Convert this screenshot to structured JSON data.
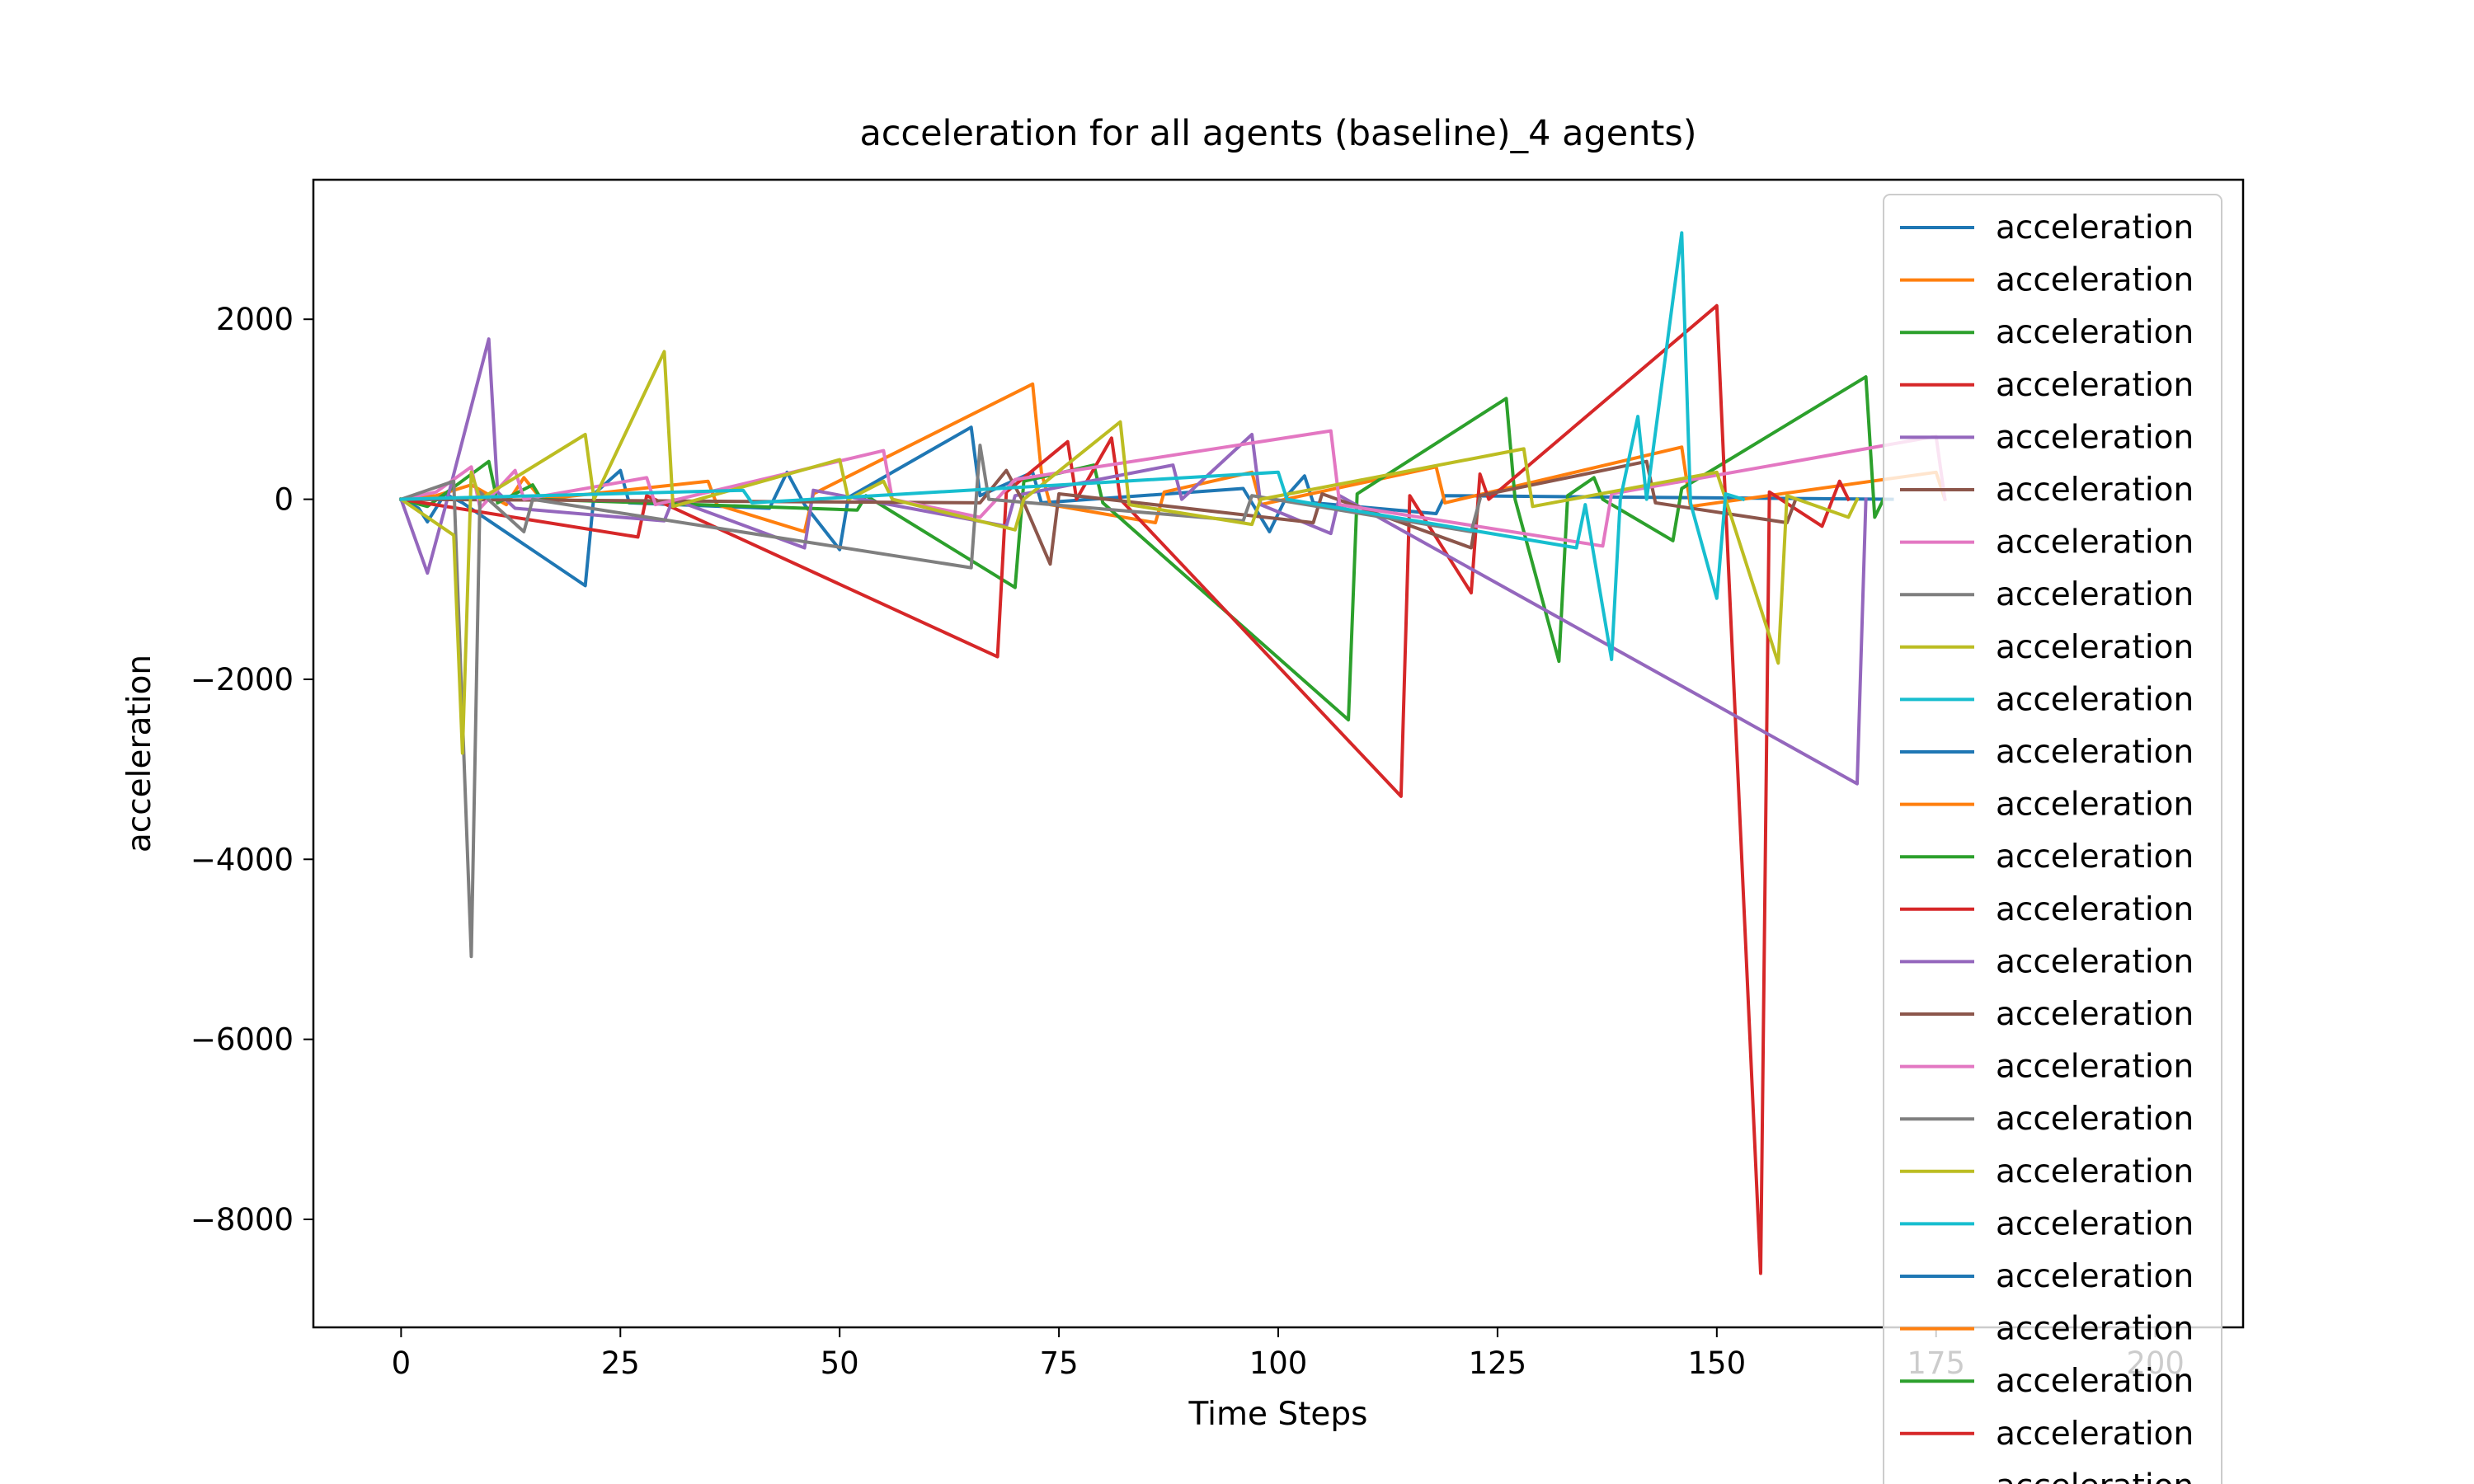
{
  "chart_data": {
    "type": "line",
    "title": "acceleration for all agents (baseline)_4 agents)",
    "xlabel": "Time Steps",
    "ylabel": "acceleration",
    "xlim": [
      -10,
      210
    ],
    "ylim": [
      -9200,
      3550
    ],
    "xticks": [
      0,
      25,
      50,
      75,
      100,
      125,
      150,
      175,
      200
    ],
    "xtick_labels": [
      "0",
      "25",
      "50",
      "75",
      "100",
      "125",
      "150",
      "175",
      "200"
    ],
    "yticks": [
      2000,
      0,
      -2000,
      -4000,
      -6000,
      -8000
    ],
    "ytick_labels": [
      "2000",
      "0",
      "−2000",
      "−4000",
      "−6000",
      "−8000"
    ],
    "grid": false,
    "legend": "top-right",
    "colors": [
      "#1f77b4",
      "#ff7f0e",
      "#2ca02c",
      "#d62728",
      "#9467bd",
      "#8c564b",
      "#e377c2",
      "#7f7f7f",
      "#bcbd22",
      "#17becf"
    ],
    "series": [
      {
        "name": "acceleration",
        "points": [
          [
            0,
            0
          ],
          [
            2,
            -100
          ],
          [
            3,
            -250
          ],
          [
            5,
            60
          ],
          [
            7,
            -40
          ],
          [
            21,
            -960
          ],
          [
            22,
            60
          ],
          [
            25,
            320
          ],
          [
            26,
            -40
          ],
          [
            42,
            -100
          ],
          [
            44,
            300
          ],
          [
            46,
            -60
          ],
          [
            50,
            -560
          ],
          [
            51,
            20
          ],
          [
            65,
            800
          ],
          [
            66,
            40
          ],
          [
            72,
            300
          ],
          [
            73,
            -40
          ],
          [
            96,
            120
          ],
          [
            99,
            -360
          ],
          [
            101,
            40
          ],
          [
            103,
            260
          ],
          [
            104,
            -40
          ],
          [
            118,
            -160
          ],
          [
            119,
            40
          ],
          [
            170,
            0
          ]
        ]
      },
      {
        "name": "acceleration",
        "points": [
          [
            0,
            0
          ],
          [
            4,
            40
          ],
          [
            8,
            160
          ],
          [
            12,
            -60
          ],
          [
            14,
            240
          ],
          [
            16,
            0
          ],
          [
            35,
            200
          ],
          [
            36,
            -60
          ],
          [
            46,
            -360
          ],
          [
            47,
            60
          ],
          [
            72,
            1280
          ],
          [
            73,
            300
          ],
          [
            74,
            -60
          ],
          [
            86,
            -260
          ],
          [
            87,
            80
          ],
          [
            97,
            300
          ],
          [
            98,
            -60
          ],
          [
            118,
            360
          ],
          [
            119,
            -40
          ],
          [
            146,
            580
          ],
          [
            147,
            -80
          ],
          [
            175,
            300
          ],
          [
            176,
            0
          ]
        ]
      },
      {
        "name": "acceleration",
        "points": [
          [
            0,
            0
          ],
          [
            3,
            -80
          ],
          [
            10,
            420
          ],
          [
            11,
            -40
          ],
          [
            15,
            160
          ],
          [
            16,
            0
          ],
          [
            52,
            -120
          ],
          [
            53,
            40
          ],
          [
            70,
            -980
          ],
          [
            71,
            200
          ],
          [
            79,
            380
          ],
          [
            80,
            -40
          ],
          [
            108,
            -2450
          ],
          [
            109,
            60
          ],
          [
            126,
            1120
          ],
          [
            127,
            0
          ],
          [
            132,
            -1800
          ],
          [
            133,
            40
          ],
          [
            136,
            240
          ],
          [
            137,
            0
          ],
          [
            145,
            -460
          ],
          [
            146,
            120
          ],
          [
            167,
            1360
          ],
          [
            168,
            -200
          ],
          [
            169,
            0
          ]
        ]
      },
      {
        "name": "acceleration",
        "points": [
          [
            0,
            0
          ],
          [
            27,
            -420
          ],
          [
            28,
            40
          ],
          [
            68,
            -1750
          ],
          [
            69,
            80
          ],
          [
            76,
            640
          ],
          [
            77,
            0
          ],
          [
            81,
            680
          ],
          [
            82,
            0
          ],
          [
            114,
            -3300
          ],
          [
            115,
            40
          ],
          [
            122,
            -1040
          ],
          [
            123,
            280
          ],
          [
            124,
            0
          ],
          [
            150,
            2150
          ],
          [
            151,
            -60
          ],
          [
            155,
            -8600
          ],
          [
            156,
            80
          ],
          [
            162,
            -300
          ],
          [
            164,
            200
          ],
          [
            165,
            0
          ]
        ]
      },
      {
        "name": "acceleration",
        "points": [
          [
            0,
            0
          ],
          [
            3,
            -820
          ],
          [
            5,
            -100
          ],
          [
            10,
            1780
          ],
          [
            11,
            80
          ],
          [
            13,
            -100
          ],
          [
            30,
            -240
          ],
          [
            31,
            0
          ],
          [
            46,
            -540
          ],
          [
            47,
            100
          ],
          [
            69,
            -300
          ],
          [
            70,
            40
          ],
          [
            88,
            380
          ],
          [
            89,
            0
          ],
          [
            97,
            720
          ],
          [
            98,
            -60
          ],
          [
            106,
            -380
          ],
          [
            107,
            40
          ],
          [
            166,
            -3160
          ],
          [
            167,
            0
          ]
        ]
      },
      {
        "name": "acceleration",
        "points": [
          [
            0,
            0
          ],
          [
            66,
            -40
          ],
          [
            69,
            320
          ],
          [
            71,
            -40
          ],
          [
            74,
            -720
          ],
          [
            75,
            60
          ],
          [
            104,
            -260
          ],
          [
            105,
            60
          ],
          [
            122,
            -540
          ],
          [
            123,
            40
          ],
          [
            142,
            420
          ],
          [
            143,
            -40
          ],
          [
            158,
            -260
          ],
          [
            159,
            0
          ]
        ]
      },
      {
        "name": "acceleration",
        "points": [
          [
            0,
            0
          ],
          [
            4,
            80
          ],
          [
            8,
            360
          ],
          [
            9,
            -100
          ],
          [
            13,
            320
          ],
          [
            14,
            0
          ],
          [
            28,
            240
          ],
          [
            29,
            -60
          ],
          [
            55,
            540
          ],
          [
            56,
            0
          ],
          [
            66,
            -200
          ],
          [
            70,
            220
          ],
          [
            106,
            760
          ],
          [
            107,
            -60
          ],
          [
            137,
            -520
          ],
          [
            138,
            60
          ],
          [
            175,
            700
          ],
          [
            176,
            0
          ]
        ]
      },
      {
        "name": "acceleration",
        "points": [
          [
            0,
            0
          ],
          [
            6,
            200
          ],
          [
            8,
            -5080
          ],
          [
            9,
            80
          ],
          [
            14,
            -360
          ],
          [
            15,
            0
          ],
          [
            65,
            -760
          ],
          [
            66,
            600
          ],
          [
            67,
            0
          ],
          [
            96,
            -240
          ],
          [
            97,
            40
          ],
          [
            122,
            -360
          ],
          [
            123,
            0
          ]
        ]
      },
      {
        "name": "acceleration",
        "points": [
          [
            0,
            0
          ],
          [
            6,
            -400
          ],
          [
            7,
            -2820
          ],
          [
            8,
            300
          ],
          [
            9,
            0
          ],
          [
            21,
            720
          ],
          [
            22,
            0
          ],
          [
            30,
            1640
          ],
          [
            31,
            -80
          ],
          [
            50,
            440
          ],
          [
            51,
            0
          ],
          [
            55,
            200
          ],
          [
            56,
            0
          ],
          [
            70,
            -340
          ],
          [
            71,
            0
          ],
          [
            82,
            860
          ],
          [
            83,
            -60
          ],
          [
            97,
            -280
          ],
          [
            98,
            0
          ],
          [
            128,
            560
          ],
          [
            129,
            -80
          ],
          [
            150,
            300
          ],
          [
            151,
            0
          ],
          [
            157,
            -1820
          ],
          [
            158,
            40
          ],
          [
            165,
            -200
          ],
          [
            166,
            0
          ]
        ]
      },
      {
        "name": "acceleration",
        "points": [
          [
            0,
            0
          ],
          [
            39,
            100
          ],
          [
            40,
            -40
          ],
          [
            100,
            300
          ],
          [
            101,
            0
          ],
          [
            134,
            -540
          ],
          [
            135,
            -60
          ],
          [
            138,
            -1780
          ],
          [
            139,
            0
          ],
          [
            141,
            920
          ],
          [
            142,
            0
          ],
          [
            146,
            2960
          ],
          [
            147,
            -40
          ],
          [
            150,
            -1100
          ],
          [
            151,
            60
          ],
          [
            153,
            0
          ]
        ]
      }
    ]
  },
  "legend_entries": [
    {
      "label": "acceleration",
      "color": "#1f77b4"
    },
    {
      "label": "acceleration",
      "color": "#ff7f0e"
    },
    {
      "label": "acceleration",
      "color": "#2ca02c"
    },
    {
      "label": "acceleration",
      "color": "#d62728"
    },
    {
      "label": "acceleration",
      "color": "#9467bd"
    },
    {
      "label": "acceleration",
      "color": "#8c564b"
    },
    {
      "label": "acceleration",
      "color": "#e377c2"
    },
    {
      "label": "acceleration",
      "color": "#7f7f7f"
    },
    {
      "label": "acceleration",
      "color": "#bcbd22"
    },
    {
      "label": "acceleration",
      "color": "#17becf"
    },
    {
      "label": "acceleration",
      "color": "#1f77b4"
    },
    {
      "label": "acceleration",
      "color": "#ff7f0e"
    },
    {
      "label": "acceleration",
      "color": "#2ca02c"
    },
    {
      "label": "acceleration",
      "color": "#d62728"
    },
    {
      "label": "acceleration",
      "color": "#9467bd"
    },
    {
      "label": "acceleration",
      "color": "#8c564b"
    },
    {
      "label": "acceleration",
      "color": "#e377c2"
    },
    {
      "label": "acceleration",
      "color": "#7f7f7f"
    },
    {
      "label": "acceleration",
      "color": "#bcbd22"
    },
    {
      "label": "acceleration",
      "color": "#17becf"
    },
    {
      "label": "acceleration",
      "color": "#1f77b4"
    },
    {
      "label": "acceleration",
      "color": "#ff7f0e"
    },
    {
      "label": "acceleration",
      "color": "#2ca02c"
    },
    {
      "label": "acceleration",
      "color": "#d62728"
    },
    {
      "label": "acceleration",
      "color": "#9467bd"
    }
  ]
}
